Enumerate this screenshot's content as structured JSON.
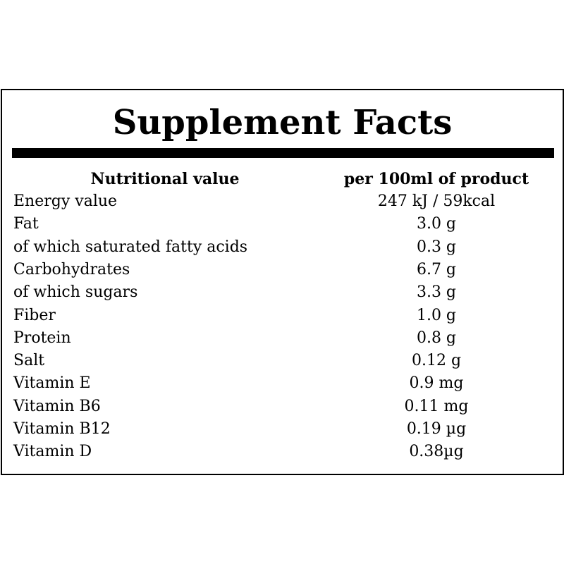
{
  "title": "Supplement Facts",
  "table": {
    "header": [
      "Nutritional value",
      "per 100ml of product"
    ],
    "rows": [
      [
        "Energy value",
        "247 kJ / 59kcal"
      ],
      [
        "Fat",
        "3.0 g"
      ],
      [
        "of which saturated fatty acids",
        "0.3 g"
      ],
      [
        "Carbohydrates",
        "6.7 g"
      ],
      [
        "of which sugars",
        "3.3 g"
      ],
      [
        "Fiber",
        "1.0 g"
      ],
      [
        "Protein",
        "0.8 g"
      ],
      [
        "Salt",
        "0.12 g"
      ],
      [
        "Vitamin E",
        "0.9 mg"
      ],
      [
        "Vitamin B6",
        "0.11 mg"
      ],
      [
        "Vitamin B12",
        "0.19 µg"
      ],
      [
        "Vitamin D",
        "0.38µg"
      ]
    ]
  }
}
